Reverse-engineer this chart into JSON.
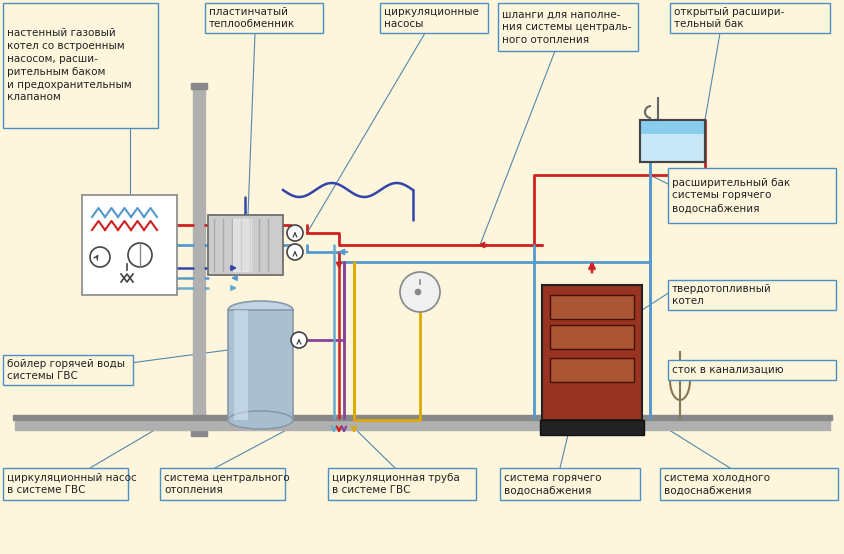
{
  "bg_color": "#fdf5dc",
  "border_color": "#4a90c4",
  "red": "#cc2222",
  "blue": "#5599cc",
  "dblue": "#3344aa",
  "yellow": "#ddaa00",
  "purple": "#884499",
  "cyan": "#66aacc",
  "boiler_red": "#993322",
  "boiler_brown": "#aa5533",
  "boiler_dark": "#221100",
  "tank_blue": "#aabfd0",
  "expand_water": "#c8e8f8",
  "wall_gray": "#aaaaaa",
  "floor_gray": "#999999",
  "leader": "#5588aa",
  "labels": {
    "top_left": "настенный газовый\nкотел со встроенным\nнасосом, расши-\nрительным баком\nи предохранительным\nклапаном",
    "plate_hx": "пластинчатый\nтеплообменник",
    "circ_pumps": "циркуляционные\nнасосы",
    "hoses": "шланги для наполне-\nния системы централь-\nного отопления",
    "open_tank": "открытый расшири-\nтельный бак",
    "exp_tank_hw": "расширительный бак\nсистемы горячего\nводоснабжения",
    "solid_boiler": "твердотопливный\nкотел",
    "boiler_gvs": "бойлер горячей воды\nсистемы ГВС",
    "drain": "сток в канализацию",
    "bot1": "циркуляционный насос\nв системе ГВС",
    "bot2": "система центрального\nотопления",
    "bot3": "циркуляционная труба\nв системе ГВС",
    "bot4": "система горячего\nводоснабжения",
    "bot5": "система холодного\nводоснабжения"
  }
}
